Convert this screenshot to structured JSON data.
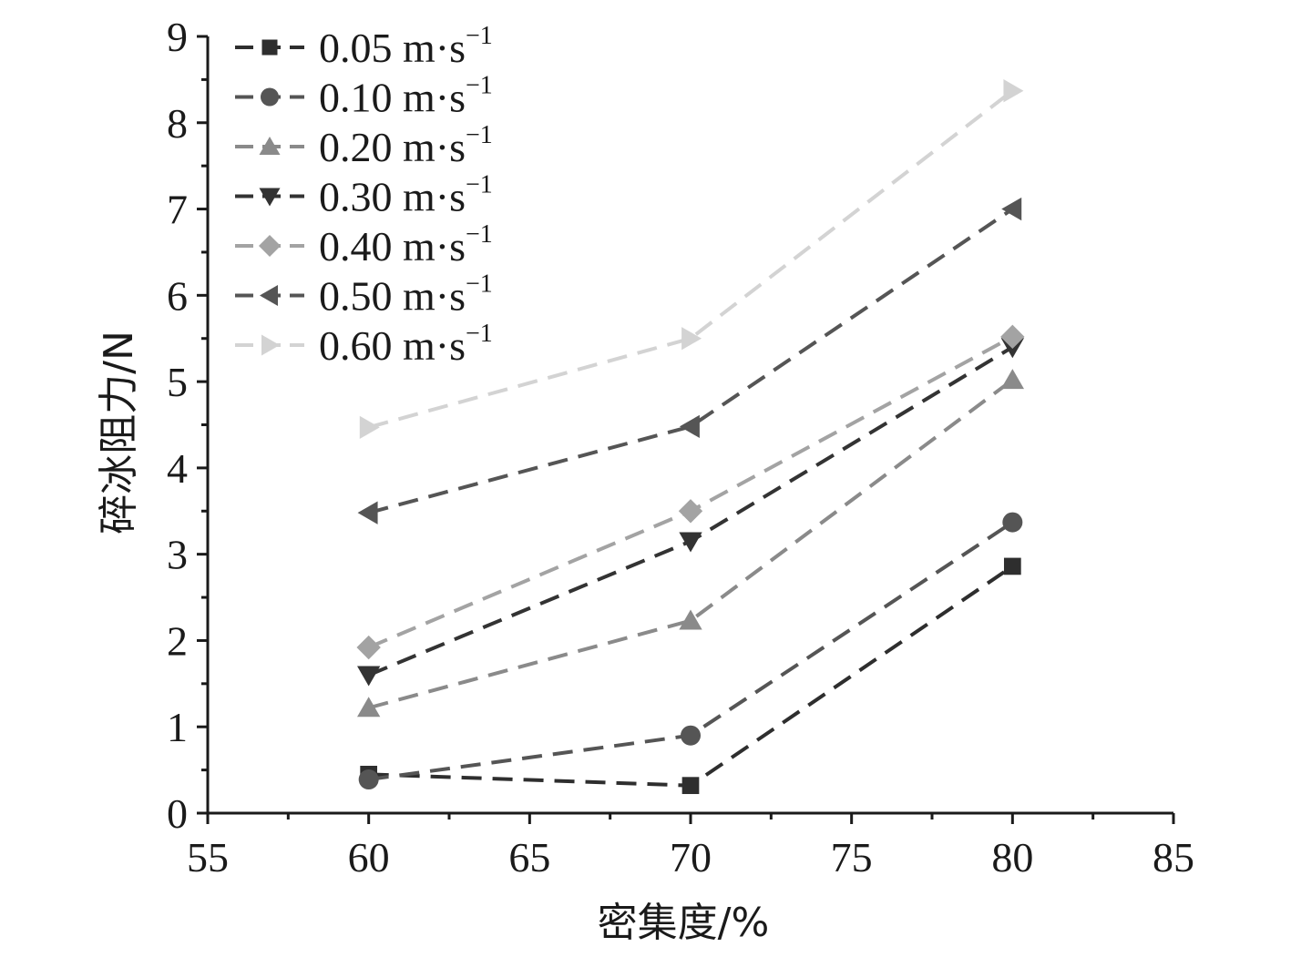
{
  "chart_data": {
    "type": "line",
    "title": "",
    "xlabel": "密集度/%",
    "ylabel": "碎冰阻力/N",
    "xlim": [
      55,
      85
    ],
    "ylim": [
      0,
      9
    ],
    "xticks": [
      "55",
      "60",
      "65",
      "70",
      "75",
      "80",
      "85"
    ],
    "yticks": [
      "0",
      "1",
      "2",
      "3",
      "4",
      "5",
      "6",
      "7",
      "8",
      "9"
    ],
    "x": [
      60,
      70,
      80
    ],
    "legend_position": "top-left",
    "unit_label": "m·s",
    "unit_exponent": "−1",
    "series": [
      {
        "name": "0.05",
        "marker": "square",
        "color": "#2e2e2e",
        "values": [
          0.45,
          0.32,
          2.86
        ]
      },
      {
        "name": "0.10",
        "marker": "circle",
        "color": "#555555",
        "values": [
          0.39,
          0.9,
          3.37
        ]
      },
      {
        "name": "0.20",
        "marker": "triangle-up",
        "color": "#8a8a8a",
        "values": [
          1.22,
          2.23,
          5.02
        ]
      },
      {
        "name": "0.30",
        "marker": "triangle-down",
        "color": "#333333",
        "values": [
          1.6,
          3.15,
          5.4
        ]
      },
      {
        "name": "0.40",
        "marker": "diamond",
        "color": "#a3a3a3",
        "values": [
          1.92,
          3.5,
          5.52
        ]
      },
      {
        "name": "0.50",
        "marker": "triangle-left",
        "color": "#555555",
        "values": [
          3.48,
          4.48,
          7.0
        ]
      },
      {
        "name": "0.60",
        "marker": "triangle-right",
        "color": "#d3d3d3",
        "values": [
          4.47,
          5.5,
          8.37
        ]
      }
    ]
  }
}
